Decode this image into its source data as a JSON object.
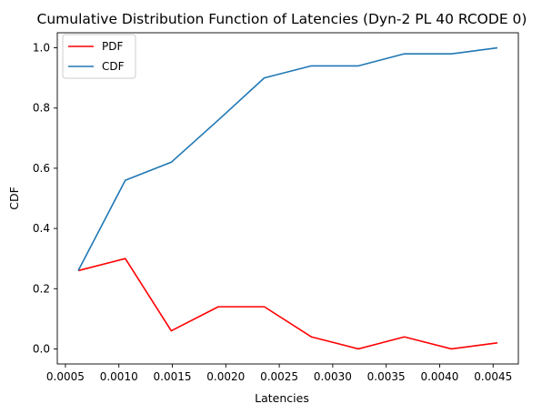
{
  "chart_data": {
    "type": "line",
    "title": "Cumulative Distribution Function of Latencies (Dyn-2 PL 40 RCODE 0)",
    "xlabel": "Latencies",
    "ylabel": "CDF",
    "x": [
      0.00062,
      0.00106,
      0.00149,
      0.00193,
      0.00236,
      0.0028,
      0.00324,
      0.00367,
      0.00411,
      0.00454
    ],
    "series": [
      {
        "name": "PDF",
        "color": "#ff0000",
        "values": [
          0.26,
          0.3,
          0.06,
          0.14,
          0.14,
          0.04,
          0.0,
          0.04,
          0.0,
          0.02
        ]
      },
      {
        "name": "CDF",
        "color": "#1f77b4",
        "values": [
          0.26,
          0.56,
          0.62,
          0.76,
          0.9,
          0.94,
          0.94,
          0.98,
          0.98,
          1.0
        ]
      }
    ],
    "xlim": [
      0.000424,
      0.004736
    ],
    "ylim": [
      -0.05,
      1.05
    ],
    "xticks": [
      0.0005,
      0.001,
      0.0015,
      0.002,
      0.0025,
      0.003,
      0.0035,
      0.004,
      0.0045
    ],
    "xtick_labels": [
      "0.0005",
      "0.0010",
      "0.0015",
      "0.0020",
      "0.0025",
      "0.0030",
      "0.0035",
      "0.0040",
      "0.0045"
    ],
    "yticks": [
      0.0,
      0.2,
      0.4,
      0.6,
      0.8,
      1.0
    ],
    "ytick_labels": [
      "0.0",
      "0.2",
      "0.4",
      "0.6",
      "0.8",
      "1.0"
    ],
    "grid": false,
    "legend_position": "upper left"
  }
}
